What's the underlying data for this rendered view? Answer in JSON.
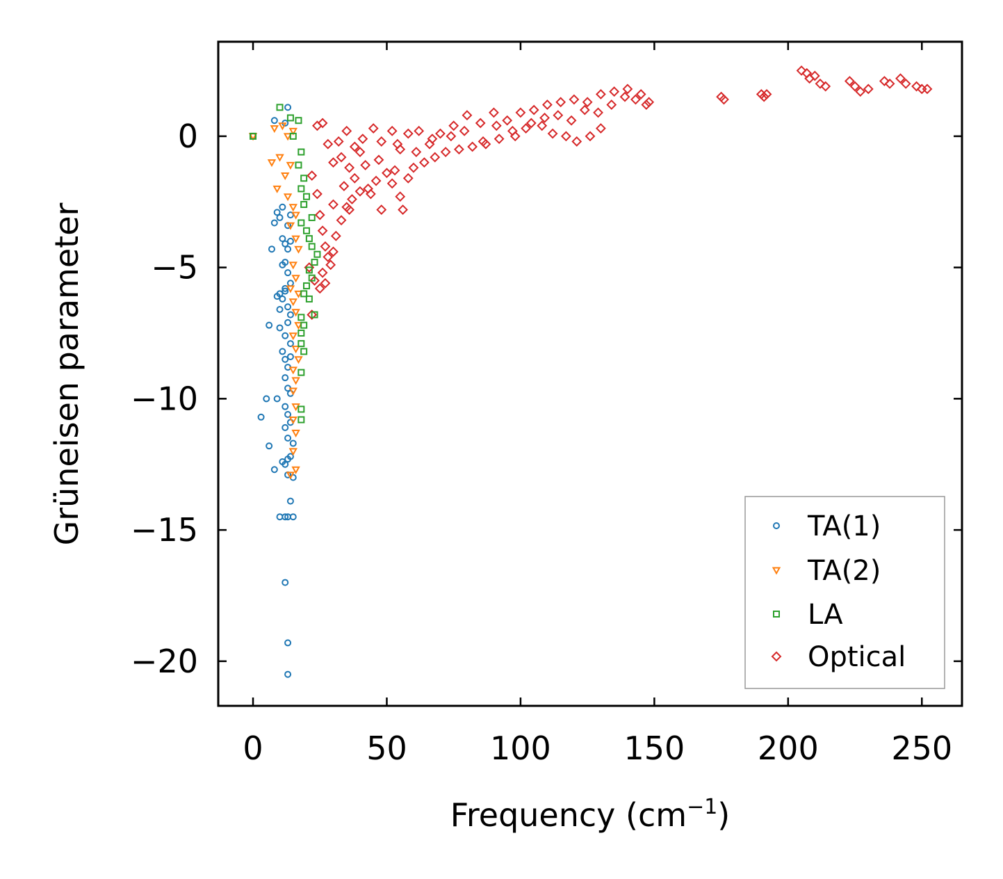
{
  "chart_data": {
    "type": "scatter",
    "xlabel": "Frequency (cm",
    "xlabel_sup": "−1",
    "xlabel_end": ")",
    "ylabel": "Grüneisen parameter",
    "xlim": [
      -13,
      265
    ],
    "ylim": [
      -21.7,
      3.6
    ],
    "xticks": [
      0,
      50,
      100,
      150,
      200,
      250
    ],
    "xtick_labels": [
      "0",
      "50",
      "100",
      "150",
      "200",
      "250"
    ],
    "yticks": [
      0,
      -5,
      -10,
      -15,
      -20
    ],
    "ytick_labels": [
      "0",
      "−5",
      "−10",
      "−15",
      "−20"
    ],
    "legend_position": "lower-right",
    "series": [
      {
        "name": "TA(1)",
        "marker": "circle",
        "color": "#1f77b4",
        "points": [
          [
            0,
            0
          ],
          [
            8,
            0.6
          ],
          [
            13,
            1.1
          ],
          [
            12,
            0.5
          ],
          [
            9,
            -2.9
          ],
          [
            10,
            -3.1
          ],
          [
            11,
            -2.7
          ],
          [
            8,
            -3.3
          ],
          [
            13,
            -3.4
          ],
          [
            14,
            -3.0
          ],
          [
            11,
            -3.9
          ],
          [
            12,
            -4.1
          ],
          [
            7,
            -4.3
          ],
          [
            13,
            -4.3
          ],
          [
            14,
            -4.0
          ],
          [
            12,
            -4.8
          ],
          [
            11,
            -4.9
          ],
          [
            13,
            -5.2
          ],
          [
            14,
            -5.6
          ],
          [
            12,
            -5.9
          ],
          [
            10,
            -6.0
          ],
          [
            11,
            -6.2
          ],
          [
            12,
            -5.8
          ],
          [
            9,
            -6.1
          ],
          [
            13,
            -6.5
          ],
          [
            10,
            -6.6
          ],
          [
            14,
            -6.8
          ],
          [
            6,
            -7.2
          ],
          [
            10,
            -7.3
          ],
          [
            13,
            -7.1
          ],
          [
            12,
            -7.6
          ],
          [
            14,
            -7.9
          ],
          [
            11,
            -8.2
          ],
          [
            12,
            -8.5
          ],
          [
            13,
            -8.8
          ],
          [
            14,
            -8.4
          ],
          [
            12,
            -9.2
          ],
          [
            13,
            -9.6
          ],
          [
            14,
            -9.8
          ],
          [
            5,
            -10.0
          ],
          [
            9,
            -10.0
          ],
          [
            3,
            -10.7
          ],
          [
            12,
            -10.3
          ],
          [
            13,
            -10.6
          ],
          [
            14,
            -10.9
          ],
          [
            12,
            -11.1
          ],
          [
            13,
            -11.5
          ],
          [
            15,
            -11.7
          ],
          [
            6,
            -11.8
          ],
          [
            14,
            -12.2
          ],
          [
            11,
            -12.4
          ],
          [
            12,
            -12.5
          ],
          [
            13,
            -12.3
          ],
          [
            8,
            -12.7
          ],
          [
            13,
            -12.9
          ],
          [
            15,
            -13.0
          ],
          [
            14,
            -13.9
          ],
          [
            10,
            -14.5
          ],
          [
            12,
            -14.5
          ],
          [
            13,
            -14.5
          ],
          [
            15,
            -14.5
          ],
          [
            12,
            -17.0
          ],
          [
            13,
            -19.3
          ],
          [
            13,
            -20.5
          ]
        ]
      },
      {
        "name": "TA(2)",
        "marker": "triangle-down",
        "color": "#ff7f0e",
        "points": [
          [
            0,
            0
          ],
          [
            8,
            0.3
          ],
          [
            11,
            0.4
          ],
          [
            13,
            0.0
          ],
          [
            15,
            0.2
          ],
          [
            7,
            -1.0
          ],
          [
            10,
            -0.8
          ],
          [
            12,
            -1.5
          ],
          [
            14,
            -1.1
          ],
          [
            9,
            -2.0
          ],
          [
            13,
            -2.3
          ],
          [
            15,
            -2.7
          ],
          [
            16,
            -3.0
          ],
          [
            14,
            -3.4
          ],
          [
            16,
            -3.9
          ],
          [
            17,
            -4.3
          ],
          [
            15,
            -4.9
          ],
          [
            16,
            -5.4
          ],
          [
            14,
            -5.8
          ],
          [
            17,
            -6.0
          ],
          [
            15,
            -6.3
          ],
          [
            16,
            -6.7
          ],
          [
            17,
            -7.2
          ],
          [
            15,
            -7.6
          ],
          [
            16,
            -8.1
          ],
          [
            17,
            -8.5
          ],
          [
            15,
            -8.9
          ],
          [
            16,
            -9.3
          ],
          [
            15,
            -9.7
          ],
          [
            16,
            -10.3
          ],
          [
            15,
            -10.8
          ],
          [
            16,
            -11.3
          ],
          [
            15,
            -12.0
          ],
          [
            16,
            -12.7
          ],
          [
            14,
            -12.9
          ]
        ]
      },
      {
        "name": "LA",
        "marker": "square",
        "color": "#2ca02c",
        "points": [
          [
            0,
            0
          ],
          [
            10,
            1.1
          ],
          [
            14,
            0.7
          ],
          [
            17,
            0.6
          ],
          [
            15,
            0.0
          ],
          [
            18,
            -0.6
          ],
          [
            17,
            -1.1
          ],
          [
            19,
            -1.6
          ],
          [
            18,
            -2.0
          ],
          [
            20,
            -2.3
          ],
          [
            19,
            -2.6
          ],
          [
            22,
            -3.1
          ],
          [
            18,
            -3.3
          ],
          [
            20,
            -3.6
          ],
          [
            21,
            -3.9
          ],
          [
            22,
            -4.2
          ],
          [
            24,
            -4.5
          ],
          [
            23,
            -4.8
          ],
          [
            21,
            -5.1
          ],
          [
            22,
            -5.4
          ],
          [
            20,
            -5.7
          ],
          [
            19,
            -6.0
          ],
          [
            21,
            -6.2
          ],
          [
            23,
            -6.8
          ],
          [
            18,
            -6.9
          ],
          [
            19,
            -7.2
          ],
          [
            18,
            -7.5
          ],
          [
            18,
            -7.9
          ],
          [
            19,
            -8.2
          ],
          [
            18,
            -9.0
          ],
          [
            18,
            -10.4
          ],
          [
            18,
            -10.8
          ]
        ]
      },
      {
        "name": "Optical",
        "marker": "diamond",
        "color": "#d62728",
        "points": [
          [
            24,
            0.4
          ],
          [
            26,
            0.5
          ],
          [
            28,
            -0.3
          ],
          [
            30,
            -1.0
          ],
          [
            32,
            -0.2
          ],
          [
            35,
            0.2
          ],
          [
            38,
            -0.4
          ],
          [
            41,
            -0.1
          ],
          [
            45,
            0.3
          ],
          [
            48,
            -0.2
          ],
          [
            52,
            0.2
          ],
          [
            55,
            -0.5
          ],
          [
            58,
            0.1
          ],
          [
            62,
            0.2
          ],
          [
            66,
            -0.3
          ],
          [
            70,
            0.1
          ],
          [
            75,
            0.4
          ],
          [
            80,
            0.8
          ],
          [
            85,
            0.5
          ],
          [
            90,
            0.9
          ],
          [
            95,
            0.6
          ],
          [
            100,
            0.9
          ],
          [
            105,
            1.0
          ],
          [
            110,
            1.2
          ],
          [
            115,
            1.3
          ],
          [
            120,
            1.4
          ],
          [
            125,
            1.3
          ],
          [
            130,
            1.6
          ],
          [
            135,
            1.7
          ],
          [
            140,
            1.8
          ],
          [
            145,
            1.6
          ],
          [
            148,
            1.3
          ],
          [
            22,
            -1.5
          ],
          [
            24,
            -2.2
          ],
          [
            25,
            -3.0
          ],
          [
            26,
            -3.6
          ],
          [
            27,
            -4.2
          ],
          [
            28,
            -4.6
          ],
          [
            30,
            -4.4
          ],
          [
            31,
            -3.8
          ],
          [
            33,
            -3.2
          ],
          [
            35,
            -2.7
          ],
          [
            37,
            -2.4
          ],
          [
            40,
            -2.1
          ],
          [
            43,
            -2.0
          ],
          [
            46,
            -1.7
          ],
          [
            50,
            -1.4
          ],
          [
            53,
            -1.3
          ],
          [
            55,
            -2.3
          ],
          [
            56,
            -2.8
          ],
          [
            58,
            -1.6
          ],
          [
            60,
            -1.2
          ],
          [
            64,
            -1.0
          ],
          [
            68,
            -0.8
          ],
          [
            72,
            -0.6
          ],
          [
            77,
            -0.5
          ],
          [
            82,
            -0.4
          ],
          [
            87,
            -0.3
          ],
          [
            92,
            -0.1
          ],
          [
            97,
            0.2
          ],
          [
            102,
            0.3
          ],
          [
            108,
            0.4
          ],
          [
            112,
            0.1
          ],
          [
            117,
            0.0
          ],
          [
            121,
            -0.2
          ],
          [
            126,
            0.0
          ],
          [
            130,
            0.3
          ],
          [
            21,
            -5.0
          ],
          [
            23,
            -5.5
          ],
          [
            25,
            -5.8
          ],
          [
            27,
            -5.6
          ],
          [
            29,
            -4.9
          ],
          [
            22,
            -6.8
          ],
          [
            26,
            -5.2
          ],
          [
            36,
            -2.8
          ],
          [
            44,
            -2.2
          ],
          [
            48,
            -2.8
          ],
          [
            52,
            -1.8
          ],
          [
            42,
            -1.1
          ],
          [
            38,
            -1.6
          ],
          [
            34,
            -1.9
          ],
          [
            30,
            -2.6
          ],
          [
            33,
            -0.8
          ],
          [
            36,
            -1.2
          ],
          [
            40,
            -0.6
          ],
          [
            47,
            -0.9
          ],
          [
            54,
            -0.3
          ],
          [
            61,
            -0.6
          ],
          [
            67,
            -0.1
          ],
          [
            74,
            0.0
          ],
          [
            79,
            0.2
          ],
          [
            86,
            -0.2
          ],
          [
            91,
            0.4
          ],
          [
            98,
            0.0
          ],
          [
            104,
            0.5
          ],
          [
            109,
            0.7
          ],
          [
            114,
            0.8
          ],
          [
            119,
            0.6
          ],
          [
            124,
            1.0
          ],
          [
            129,
            0.9
          ],
          [
            134,
            1.2
          ],
          [
            139,
            1.5
          ],
          [
            143,
            1.4
          ],
          [
            147,
            1.2
          ],
          [
            175,
            1.5
          ],
          [
            176,
            1.4
          ],
          [
            190,
            1.6
          ],
          [
            191,
            1.5
          ],
          [
            192,
            1.6
          ],
          [
            205,
            2.5
          ],
          [
            207,
            2.4
          ],
          [
            208,
            2.2
          ],
          [
            210,
            2.3
          ],
          [
            212,
            2.0
          ],
          [
            214,
            1.9
          ],
          [
            223,
            2.1
          ],
          [
            225,
            1.9
          ],
          [
            227,
            1.7
          ],
          [
            230,
            1.8
          ],
          [
            236,
            2.1
          ],
          [
            238,
            2.0
          ],
          [
            242,
            2.2
          ],
          [
            244,
            2.0
          ],
          [
            248,
            1.9
          ],
          [
            250,
            1.8
          ],
          [
            252,
            1.8
          ]
        ]
      }
    ]
  }
}
